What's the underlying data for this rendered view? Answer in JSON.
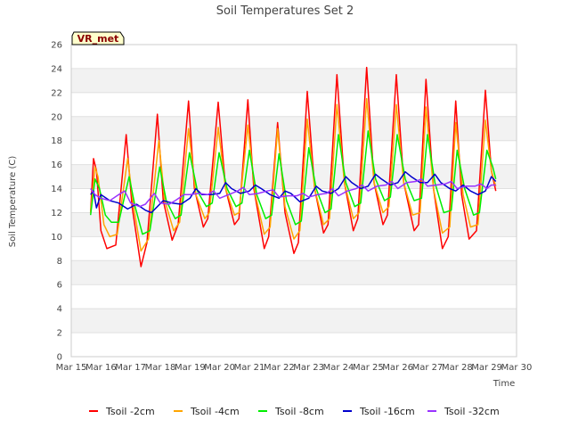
{
  "chart_data": {
    "type": "line",
    "title": "Soil Temperatures Set 2",
    "xlabel": "Time",
    "ylabel": "Soil Temperature (C)",
    "badge": "VR_met",
    "xlim": [
      15,
      30
    ],
    "ylim": [
      0,
      26
    ],
    "x_ticks": [
      "Mar 15",
      "Mar 16",
      "Mar 17",
      "Mar 18",
      "Mar 19",
      "Mar 20",
      "Mar 21",
      "Mar 22",
      "Mar 23",
      "Mar 24",
      "Mar 25",
      "Mar 26",
      "Mar 27",
      "Mar 28",
      "Mar 29",
      "Mar 30"
    ],
    "y_ticks": [
      0,
      2,
      4,
      6,
      8,
      10,
      12,
      14,
      16,
      18,
      20,
      22,
      24,
      26
    ],
    "grid": "horizontal bands",
    "legend_position": "bottom",
    "series": [
      {
        "name": "Tsoil -2cm",
        "color": "#ff0000",
        "points": [
          [
            15.65,
            12.0
          ],
          [
            15.75,
            16.5
          ],
          [
            15.85,
            15.5
          ],
          [
            16.0,
            10.5
          ],
          [
            16.2,
            9.0
          ],
          [
            16.5,
            9.3
          ],
          [
            16.85,
            18.5
          ],
          [
            17.05,
            12.5
          ],
          [
            17.35,
            7.5
          ],
          [
            17.55,
            9.5
          ],
          [
            17.9,
            20.2
          ],
          [
            18.1,
            13.0
          ],
          [
            18.4,
            9.7
          ],
          [
            18.6,
            11.0
          ],
          [
            18.95,
            21.3
          ],
          [
            19.15,
            14.0
          ],
          [
            19.45,
            10.8
          ],
          [
            19.6,
            11.5
          ],
          [
            19.95,
            21.2
          ],
          [
            20.2,
            14.0
          ],
          [
            20.5,
            11.0
          ],
          [
            20.65,
            11.5
          ],
          [
            20.95,
            21.4
          ],
          [
            21.15,
            14.0
          ],
          [
            21.5,
            9.0
          ],
          [
            21.65,
            10.0
          ],
          [
            21.95,
            19.5
          ],
          [
            22.2,
            12.0
          ],
          [
            22.5,
            8.6
          ],
          [
            22.65,
            9.5
          ],
          [
            22.95,
            22.1
          ],
          [
            23.2,
            14.0
          ],
          [
            23.5,
            10.3
          ],
          [
            23.65,
            11.0
          ],
          [
            23.95,
            23.5
          ],
          [
            24.2,
            14.5
          ],
          [
            24.5,
            10.5
          ],
          [
            24.65,
            11.5
          ],
          [
            24.95,
            24.1
          ],
          [
            25.2,
            14.5
          ],
          [
            25.5,
            11.0
          ],
          [
            25.65,
            11.8
          ],
          [
            25.95,
            23.5
          ],
          [
            26.2,
            14.5
          ],
          [
            26.55,
            10.5
          ],
          [
            26.7,
            11.0
          ],
          [
            26.95,
            23.1
          ],
          [
            27.2,
            14.0
          ],
          [
            27.5,
            9.0
          ],
          [
            27.7,
            10.0
          ],
          [
            27.95,
            21.3
          ],
          [
            28.15,
            13.5
          ],
          [
            28.4,
            9.8
          ],
          [
            28.65,
            10.5
          ],
          [
            28.95,
            22.2
          ],
          [
            29.15,
            15.5
          ],
          [
            29.3,
            13.8
          ]
        ]
      },
      {
        "name": "Tsoil -4cm",
        "color": "#ffa500",
        "points": [
          [
            15.65,
            12.0
          ],
          [
            15.8,
            15.8
          ],
          [
            15.9,
            15.0
          ],
          [
            16.1,
            11.0
          ],
          [
            16.3,
            10.0
          ],
          [
            16.55,
            10.2
          ],
          [
            16.9,
            16.5
          ],
          [
            17.1,
            12.5
          ],
          [
            17.35,
            8.8
          ],
          [
            17.6,
            9.8
          ],
          [
            17.95,
            18.0
          ],
          [
            18.15,
            13.0
          ],
          [
            18.45,
            10.5
          ],
          [
            18.65,
            11.2
          ],
          [
            18.95,
            19.0
          ],
          [
            19.2,
            13.5
          ],
          [
            19.5,
            11.5
          ],
          [
            19.65,
            12.0
          ],
          [
            19.95,
            19.1
          ],
          [
            20.2,
            14.0
          ],
          [
            20.5,
            11.8
          ],
          [
            20.65,
            12.0
          ],
          [
            20.95,
            19.3
          ],
          [
            21.2,
            13.5
          ],
          [
            21.5,
            10.2
          ],
          [
            21.7,
            10.8
          ],
          [
            21.95,
            19.0
          ],
          [
            22.2,
            12.5
          ],
          [
            22.5,
            9.8
          ],
          [
            22.7,
            10.5
          ],
          [
            22.95,
            19.8
          ],
          [
            23.2,
            14.0
          ],
          [
            23.5,
            11.0
          ],
          [
            23.7,
            11.5
          ],
          [
            23.95,
            21.0
          ],
          [
            24.2,
            14.5
          ],
          [
            24.5,
            11.5
          ],
          [
            24.7,
            12.0
          ],
          [
            24.95,
            21.5
          ],
          [
            25.2,
            14.5
          ],
          [
            25.5,
            12.0
          ],
          [
            25.7,
            12.5
          ],
          [
            25.95,
            21.0
          ],
          [
            26.2,
            14.5
          ],
          [
            26.5,
            11.8
          ],
          [
            26.75,
            12.0
          ],
          [
            26.95,
            20.8
          ],
          [
            27.2,
            14.0
          ],
          [
            27.5,
            10.3
          ],
          [
            27.75,
            10.8
          ],
          [
            27.95,
            19.5
          ],
          [
            28.2,
            13.5
          ],
          [
            28.45,
            10.8
          ],
          [
            28.7,
            11.0
          ],
          [
            28.95,
            19.7
          ],
          [
            29.15,
            15.5
          ],
          [
            29.3,
            14.2
          ]
        ]
      },
      {
        "name": "Tsoil -8cm",
        "color": "#00ee00",
        "points": [
          [
            15.65,
            11.8
          ],
          [
            15.8,
            14.8
          ],
          [
            15.95,
            14.0
          ],
          [
            16.15,
            11.8
          ],
          [
            16.35,
            11.2
          ],
          [
            16.6,
            11.2
          ],
          [
            16.95,
            15.0
          ],
          [
            17.15,
            12.5
          ],
          [
            17.4,
            10.2
          ],
          [
            17.65,
            10.5
          ],
          [
            17.98,
            15.8
          ],
          [
            18.2,
            13.0
          ],
          [
            18.5,
            11.5
          ],
          [
            18.7,
            11.8
          ],
          [
            18.98,
            17.0
          ],
          [
            19.25,
            13.8
          ],
          [
            19.55,
            12.5
          ],
          [
            19.75,
            12.8
          ],
          [
            19.98,
            17.0
          ],
          [
            20.25,
            14.0
          ],
          [
            20.55,
            12.5
          ],
          [
            20.75,
            12.8
          ],
          [
            21.0,
            17.2
          ],
          [
            21.25,
            13.5
          ],
          [
            21.55,
            11.5
          ],
          [
            21.75,
            11.8
          ],
          [
            22.0,
            16.9
          ],
          [
            22.25,
            13.0
          ],
          [
            22.55,
            11.0
          ],
          [
            22.75,
            11.3
          ],
          [
            23.0,
            17.4
          ],
          [
            23.25,
            14.0
          ],
          [
            23.55,
            12.0
          ],
          [
            23.75,
            12.3
          ],
          [
            24.0,
            18.5
          ],
          [
            24.25,
            14.5
          ],
          [
            24.55,
            12.5
          ],
          [
            24.75,
            12.8
          ],
          [
            25.0,
            18.8
          ],
          [
            25.25,
            14.8
          ],
          [
            25.55,
            13.0
          ],
          [
            25.75,
            13.3
          ],
          [
            25.98,
            18.5
          ],
          [
            26.25,
            14.8
          ],
          [
            26.55,
            13.0
          ],
          [
            26.8,
            13.2
          ],
          [
            27.0,
            18.5
          ],
          [
            27.25,
            14.5
          ],
          [
            27.55,
            12.0
          ],
          [
            27.8,
            12.2
          ],
          [
            28.0,
            17.2
          ],
          [
            28.25,
            14.0
          ],
          [
            28.55,
            11.8
          ],
          [
            28.75,
            12.0
          ],
          [
            29.0,
            17.2
          ],
          [
            29.2,
            15.8
          ],
          [
            29.3,
            14.8
          ]
        ]
      },
      {
        "name": "Tsoil -16cm",
        "color": "#0000cc",
        "points": [
          [
            15.65,
            13.5
          ],
          [
            15.75,
            13.8
          ],
          [
            15.85,
            12.4
          ],
          [
            16.0,
            13.5
          ],
          [
            16.3,
            13.0
          ],
          [
            16.6,
            12.8
          ],
          [
            16.9,
            12.3
          ],
          [
            17.2,
            12.7
          ],
          [
            17.5,
            12.2
          ],
          [
            17.7,
            12.0
          ],
          [
            17.9,
            12.5
          ],
          [
            18.1,
            13.0
          ],
          [
            18.4,
            12.8
          ],
          [
            18.7,
            12.7
          ],
          [
            19.0,
            13.2
          ],
          [
            19.2,
            14.0
          ],
          [
            19.4,
            13.5
          ],
          [
            19.7,
            13.5
          ],
          [
            20.0,
            13.6
          ],
          [
            20.2,
            14.5
          ],
          [
            20.4,
            14.0
          ],
          [
            20.7,
            13.6
          ],
          [
            21.0,
            13.8
          ],
          [
            21.2,
            14.3
          ],
          [
            21.4,
            14.0
          ],
          [
            21.7,
            13.5
          ],
          [
            22.0,
            13.2
          ],
          [
            22.2,
            13.8
          ],
          [
            22.4,
            13.6
          ],
          [
            22.7,
            12.9
          ],
          [
            23.0,
            13.2
          ],
          [
            23.25,
            14.2
          ],
          [
            23.45,
            13.8
          ],
          [
            23.75,
            13.6
          ],
          [
            24.0,
            14.0
          ],
          [
            24.25,
            15.0
          ],
          [
            24.45,
            14.5
          ],
          [
            24.75,
            14.0
          ],
          [
            25.0,
            14.2
          ],
          [
            25.25,
            15.2
          ],
          [
            25.45,
            14.8
          ],
          [
            25.75,
            14.3
          ],
          [
            26.0,
            14.5
          ],
          [
            26.25,
            15.4
          ],
          [
            26.45,
            15.0
          ],
          [
            26.75,
            14.5
          ],
          [
            27.0,
            14.5
          ],
          [
            27.25,
            15.2
          ],
          [
            27.45,
            14.5
          ],
          [
            27.75,
            14.0
          ],
          [
            27.95,
            13.8
          ],
          [
            28.2,
            14.3
          ],
          [
            28.45,
            13.8
          ],
          [
            28.7,
            13.5
          ],
          [
            28.95,
            13.8
          ],
          [
            29.15,
            15.0
          ],
          [
            29.3,
            14.6
          ]
        ]
      },
      {
        "name": "Tsoil -32cm",
        "color": "#9933ff",
        "points": [
          [
            15.65,
            14.0
          ],
          [
            15.8,
            13.5
          ],
          [
            16.0,
            13.2
          ],
          [
            16.3,
            13.0
          ],
          [
            16.6,
            13.5
          ],
          [
            16.8,
            13.8
          ],
          [
            17.0,
            12.8
          ],
          [
            17.3,
            12.5
          ],
          [
            17.5,
            12.7
          ],
          [
            17.8,
            13.6
          ],
          [
            18.0,
            12.8
          ],
          [
            18.3,
            12.7
          ],
          [
            18.5,
            13.0
          ],
          [
            18.8,
            13.5
          ],
          [
            19.0,
            13.5
          ],
          [
            19.3,
            13.6
          ],
          [
            19.6,
            13.5
          ],
          [
            19.8,
            13.8
          ],
          [
            20.0,
            13.2
          ],
          [
            20.3,
            13.5
          ],
          [
            20.6,
            13.8
          ],
          [
            20.8,
            14.1
          ],
          [
            21.0,
            13.5
          ],
          [
            21.3,
            13.6
          ],
          [
            21.6,
            13.8
          ],
          [
            21.8,
            13.9
          ],
          [
            22.0,
            13.3
          ],
          [
            22.3,
            13.4
          ],
          [
            22.6,
            13.4
          ],
          [
            22.8,
            13.6
          ],
          [
            23.0,
            13.3
          ],
          [
            23.3,
            13.5
          ],
          [
            23.6,
            13.6
          ],
          [
            23.8,
            14.0
          ],
          [
            24.0,
            13.4
          ],
          [
            24.3,
            13.8
          ],
          [
            24.6,
            14.0
          ],
          [
            24.8,
            14.3
          ],
          [
            25.0,
            13.8
          ],
          [
            25.3,
            14.2
          ],
          [
            25.6,
            14.3
          ],
          [
            25.8,
            14.6
          ],
          [
            26.0,
            14.0
          ],
          [
            26.3,
            14.5
          ],
          [
            26.6,
            14.6
          ],
          [
            26.8,
            14.8
          ],
          [
            27.0,
            14.2
          ],
          [
            27.3,
            14.3
          ],
          [
            27.6,
            14.4
          ],
          [
            27.8,
            14.6
          ],
          [
            28.0,
            14.0
          ],
          [
            28.3,
            14.2
          ],
          [
            28.6,
            14.2
          ],
          [
            28.8,
            14.4
          ],
          [
            29.0,
            14.0
          ],
          [
            29.15,
            14.3
          ],
          [
            29.3,
            14.3
          ]
        ]
      }
    ]
  }
}
